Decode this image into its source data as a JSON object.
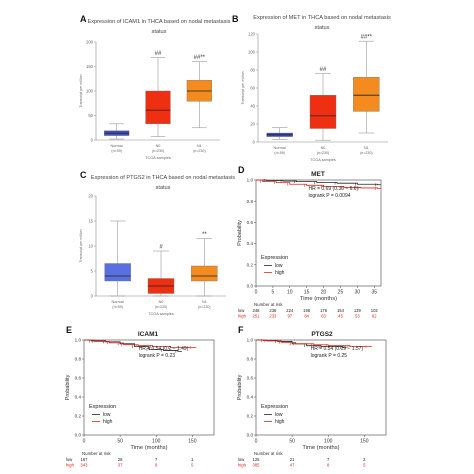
{
  "panels": [
    {
      "letter": "A",
      "type": "box",
      "title_lines": [
        "Expression of ICAM1 in THCA based on nodal metastasis",
        "status"
      ],
      "ylabel": "Transcript per million",
      "xlabel": "TCGA samples",
      "ylim": [
        0,
        200
      ],
      "yticks": [
        0,
        50,
        100,
        150,
        200
      ],
      "categories": [
        {
          "name": "Normal",
          "n": "(n=59)",
          "color": "#3f4fc4",
          "min": 2,
          "q1": 9,
          "median": 14,
          "q3": 19,
          "max": 33,
          "sig": ""
        },
        {
          "name": "N0",
          "n": "(n=230)",
          "color": "#ef2f12",
          "min": 7,
          "q1": 33,
          "median": 61,
          "q3": 100,
          "max": 168,
          "sig": "##"
        },
        {
          "name": "N1",
          "n": "(n=230)",
          "color": "#f38b1f",
          "min": 25,
          "q1": 79,
          "median": 100,
          "q3": 122,
          "max": 160,
          "sig": "##**"
        }
      ]
    },
    {
      "letter": "B",
      "type": "box",
      "title_lines": [
        "Expression of MET in THCA based on nodal metastasis",
        "status"
      ],
      "ylabel": "Transcript per million",
      "xlabel": "TCGA samples",
      "ylim": [
        0,
        120
      ],
      "yticks": [
        0,
        20,
        40,
        60,
        80,
        100,
        120
      ],
      "categories": [
        {
          "name": "Normal",
          "n": "(n=59)",
          "color": "#3f4fc4",
          "min": 3,
          "q1": 6,
          "median": 8,
          "q3": 10,
          "max": 16,
          "sig": ""
        },
        {
          "name": "N0",
          "n": "(n=230)",
          "color": "#ef2f12",
          "min": 2,
          "q1": 15,
          "median": 29,
          "q3": 52,
          "max": 76,
          "sig": "##"
        },
        {
          "name": "N1",
          "n": "(n=230)",
          "color": "#f38b1f",
          "min": 10,
          "q1": 34,
          "median": 52,
          "q3": 72,
          "max": 112,
          "sig": "##**"
        }
      ]
    },
    {
      "letter": "C",
      "type": "box",
      "title_lines": [
        "Expression of PTGS2 in THCA based on nodal metastasis",
        "status"
      ],
      "ylabel": "Transcript per million",
      "xlabel": "TCGA samples",
      "ylim": [
        0,
        20
      ],
      "yticks": [
        0,
        5,
        10,
        15,
        20
      ],
      "categories": [
        {
          "name": "Normal",
          "n": "(n=59)",
          "color": "#5a6fe0",
          "min": 0,
          "q1": 3,
          "median": 4,
          "q3": 6.5,
          "max": 15,
          "sig": ""
        },
        {
          "name": "N0",
          "n": "(n=230)",
          "color": "#ef2f12",
          "min": 0,
          "q1": 0.5,
          "median": 2,
          "q3": 3.5,
          "max": 9,
          "sig": "#"
        },
        {
          "name": "N1",
          "n": "(n=230)",
          "color": "#f38b1f",
          "min": 0,
          "q1": 3,
          "median": 4,
          "q3": 6,
          "max": 11.5,
          "sig": "**"
        }
      ]
    },
    {
      "letter": "D",
      "type": "km",
      "title": "MET",
      "ylabel": "Probability",
      "xlabel": "Time (months)",
      "ylim": [
        0,
        1
      ],
      "yticks": [
        0,
        0.2,
        0.4,
        0.6,
        0.8,
        1.0
      ],
      "xlim": [
        0,
        37
      ],
      "xticks": [
        0,
        5,
        10,
        15,
        20,
        25,
        30,
        35
      ],
      "hr_text": "HR = 0.69 (0.36 − 6.6)",
      "p_text": "logrank P = 0.0094",
      "legend_title": "Expression",
      "legend": [
        {
          "name": "low",
          "color": "#222222"
        },
        {
          "name": "high",
          "color": "#e4261b"
        }
      ],
      "risk_label": "Number at risk",
      "risk": [
        {
          "name": "low",
          "color": "#222222",
          "values": [
            "248",
            "236",
            "224",
            "196",
            "176",
            "154",
            "139",
            "102"
          ]
        },
        {
          "name": "high",
          "color": "#e4261b",
          "values": [
            "251",
            "233",
            "97",
            "84",
            "63",
            "45",
            "53",
            "62"
          ]
        }
      ],
      "curves": [
        {
          "color": "#222222",
          "points": [
            [
              0,
              1
            ],
            [
              3,
              0.995
            ],
            [
              8,
              0.99
            ],
            [
              12,
              0.985
            ],
            [
              18,
              0.975
            ],
            [
              24,
              0.97
            ],
            [
              30,
              0.96
            ],
            [
              36,
              0.955
            ]
          ]
        },
        {
          "color": "#e4261b",
          "points": [
            [
              0,
              1
            ],
            [
              2,
              0.985
            ],
            [
              6,
              0.975
            ],
            [
              10,
              0.96
            ],
            [
              15,
              0.95
            ],
            [
              20,
              0.94
            ],
            [
              26,
              0.93
            ],
            [
              31,
              0.925
            ],
            [
              36,
              0.92
            ]
          ]
        }
      ]
    },
    {
      "letter": "E",
      "type": "km",
      "title": "ICAM1",
      "ylabel": "Probability",
      "xlabel": "Time (months)",
      "ylim": [
        0,
        1
      ],
      "yticks": [
        0,
        0.2,
        0.4,
        0.6,
        0.8,
        1.0
      ],
      "xlim": [
        0,
        180
      ],
      "xticks": [
        0,
        50,
        100,
        150
      ],
      "hr_text": "HR = 0.54 (0.2 − 1.49)",
      "p_text": "logrank P = 0.23",
      "legend_title": "Expression",
      "legend": [
        {
          "name": "low",
          "color": "#222222"
        },
        {
          "name": "high",
          "color": "#e4261b"
        }
      ],
      "risk_label": "Number at risk",
      "risk": [
        {
          "name": "low",
          "color": "#222222",
          "values": [
            "167",
            "28",
            "7",
            "1"
          ]
        },
        {
          "name": "high",
          "color": "#e4261b",
          "values": [
            "343",
            "37",
            "8",
            "5"
          ]
        }
      ],
      "curves": [
        {
          "color": "#222222",
          "points": [
            [
              0,
              1
            ],
            [
              10,
              0.99
            ],
            [
              30,
              0.98
            ],
            [
              50,
              0.96
            ],
            [
              70,
              0.93
            ],
            [
              90,
              0.9
            ],
            [
              110,
              0.89
            ],
            [
              130,
              0.88
            ]
          ]
        },
        {
          "color": "#e4261b",
          "points": [
            [
              0,
              1
            ],
            [
              15,
              0.985
            ],
            [
              35,
              0.97
            ],
            [
              55,
              0.95
            ],
            [
              75,
              0.94
            ],
            [
              95,
              0.93
            ],
            [
              120,
              0.92
            ],
            [
              150,
              0.92
            ]
          ]
        }
      ]
    },
    {
      "letter": "F",
      "type": "km",
      "title": "PTGS2",
      "ylabel": "Probability",
      "xlabel": "Time (months)",
      "ylim": [
        0,
        1
      ],
      "yticks": [
        0,
        0.2,
        0.4,
        0.6,
        0.8,
        1.0
      ],
      "xlim": [
        0,
        180
      ],
      "xticks": [
        0,
        50,
        100,
        150
      ],
      "hr_text": "HR = 0.54 (0.19 − 1.57)",
      "p_text": "logrank P = 0.25",
      "legend_title": "Expression",
      "legend": [
        {
          "name": "low",
          "color": "#222222"
        },
        {
          "name": "high",
          "color": "#e4261b"
        }
      ],
      "risk_label": "Number at risk",
      "risk": [
        {
          "name": "low",
          "color": "#222222",
          "values": [
            "125",
            "21",
            "7",
            "2"
          ]
        },
        {
          "name": "high",
          "color": "#e4261b",
          "values": [
            "385",
            "47",
            "8",
            "5"
          ]
        }
      ],
      "curves": [
        {
          "color": "#222222",
          "points": [
            [
              0,
              1
            ],
            [
              10,
              0.995
            ],
            [
              30,
              0.985
            ],
            [
              50,
              0.96
            ],
            [
              70,
              0.94
            ],
            [
              90,
              0.93
            ],
            [
              120,
              0.92
            ]
          ]
        },
        {
          "color": "#e4261b",
          "points": [
            [
              0,
              1
            ],
            [
              15,
              0.99
            ],
            [
              35,
              0.975
            ],
            [
              55,
              0.96
            ],
            [
              80,
              0.95
            ],
            [
              100,
              0.94
            ],
            [
              130,
              0.93
            ],
            [
              155,
              0.93
            ]
          ]
        }
      ]
    }
  ]
}
